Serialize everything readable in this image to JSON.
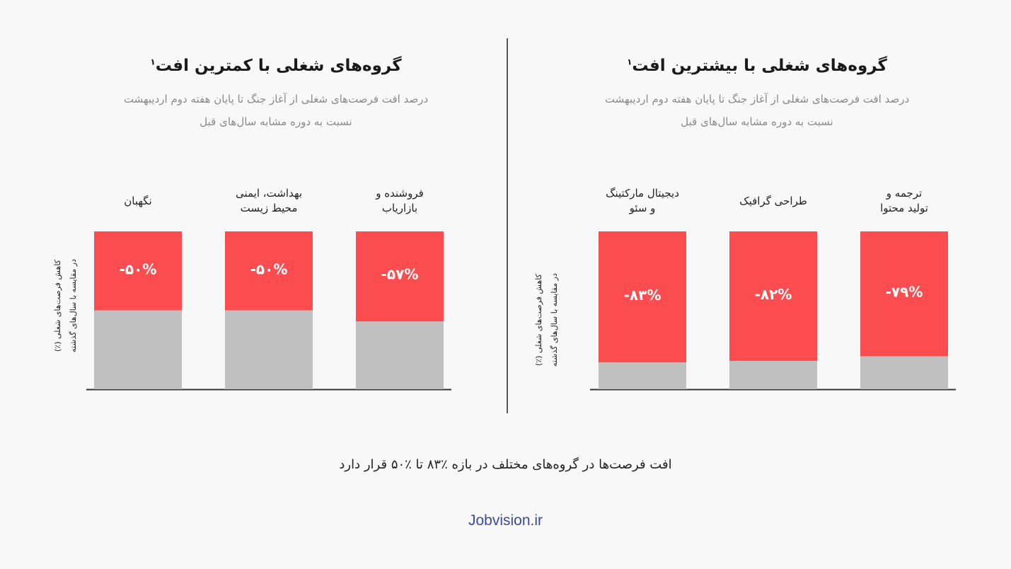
{
  "panels": {
    "left": {
      "title": "گروه‌های شغلی با کمترین افت",
      "title_sup": "۱",
      "subtitle_line1": "درصد افت فرصت‌های شغلی از آغاز جنگ تا پایان هفته دوم اردیبهشت",
      "subtitle_line2": "نسبت به دوره مشابه سال‌های قبل",
      "ylabel_line1": "کاهش فرصت‌های شغلی (٪)",
      "ylabel_line2": "در مقایسه با سال‌های گذشته"
    },
    "right": {
      "title": "گروه‌های شغلی با بیشترین افت",
      "title_sup": "۱",
      "subtitle_line1": "درصد افت فرصت‌های شغلی از آغاز جنگ تا پایان هفته دوم اردیبهشت",
      "subtitle_line2": "نسبت به دوره مشابه سال‌های قبل",
      "ylabel_line1": "کاهش فرصت‌های شغلی (٪)",
      "ylabel_line2": "در مقایسه با سال‌های گذشته"
    }
  },
  "chart_data": [
    {
      "type": "bar",
      "stacked": true,
      "title": "گروه‌های شغلی با کمترین افت",
      "categories": [
        "نگهبان",
        "بهداشت، ایمنی محیط زیست",
        "فروشنده و بازاریاب"
      ],
      "category_lines": [
        [
          "نگهبان"
        ],
        [
          "بهداشت، ایمنی",
          "محیط زیست"
        ],
        [
          "فروشنده و",
          "بازاریاب"
        ]
      ],
      "values": [
        -50,
        -50,
        -57
      ],
      "value_labels": [
        "-۵۰%",
        "-۵۰%",
        "-۵۷%"
      ],
      "ylim": [
        0,
        100
      ],
      "colors": {
        "decline": "#fb4d50",
        "remaining": "#c0c0c0"
      }
    },
    {
      "type": "bar",
      "stacked": true,
      "title": "گروه‌های شغلی با بیشترین افت",
      "categories": [
        "دیجیتال مارکتینگ و سئو",
        "طراحی گرافیک",
        "ترجمه و تولید محتوا"
      ],
      "category_lines": [
        [
          "دیجیتال مارکتینگ",
          "و سئو"
        ],
        [
          "طراحی گرافیک"
        ],
        [
          "ترجمه و",
          "تولید محتوا"
        ]
      ],
      "values": [
        -83,
        -82,
        -79
      ],
      "value_labels": [
        "-۸۳%",
        "-۸۲%",
        "-۷۹%"
      ],
      "ylim": [
        0,
        100
      ],
      "colors": {
        "decline": "#fb4d50",
        "remaining": "#c0c0c0"
      }
    }
  ],
  "footer": {
    "note": "افت فرصت‌ها در گروه‌های مختلف در بازه ٪۸۳ تا ٪۵۰ قرار دارد",
    "brand": "Jobvision.ir"
  }
}
